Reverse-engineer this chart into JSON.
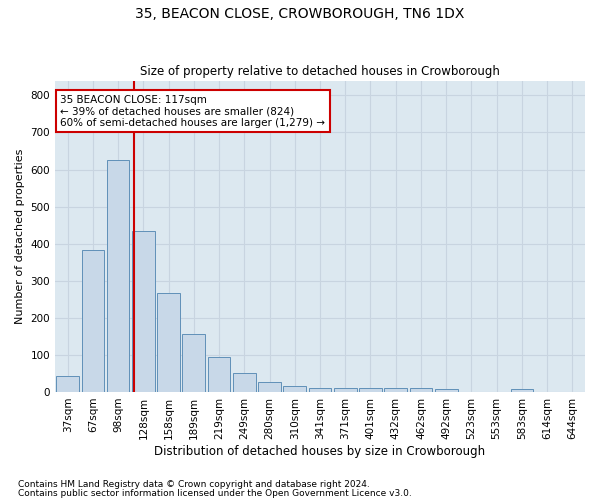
{
  "title1": "35, BEACON CLOSE, CROWBOROUGH, TN6 1DX",
  "title2": "Size of property relative to detached houses in Crowborough",
  "xlabel": "Distribution of detached houses by size in Crowborough",
  "ylabel": "Number of detached properties",
  "categories": [
    "37sqm",
    "67sqm",
    "98sqm",
    "128sqm",
    "158sqm",
    "189sqm",
    "219sqm",
    "249sqm",
    "280sqm",
    "310sqm",
    "341sqm",
    "371sqm",
    "401sqm",
    "432sqm",
    "462sqm",
    "492sqm",
    "523sqm",
    "553sqm",
    "583sqm",
    "614sqm",
    "644sqm"
  ],
  "values": [
    43,
    383,
    625,
    435,
    268,
    155,
    95,
    52,
    27,
    15,
    10,
    10,
    10,
    10,
    10,
    8,
    0,
    0,
    8,
    0,
    0
  ],
  "bar_color": "#c8d8e8",
  "bar_edge_color": "#6090b8",
  "vline_color": "#cc0000",
  "annotation_text": "35 BEACON CLOSE: 117sqm\n← 39% of detached houses are smaller (824)\n60% of semi-detached houses are larger (1,279) →",
  "annotation_box_color": "white",
  "annotation_box_edge": "#cc0000",
  "ylim": [
    0,
    840
  ],
  "yticks": [
    0,
    100,
    200,
    300,
    400,
    500,
    600,
    700,
    800
  ],
  "footnote1": "Contains HM Land Registry data © Crown copyright and database right 2024.",
  "footnote2": "Contains public sector information licensed under the Open Government Licence v3.0.",
  "grid_color": "#c8d4e0",
  "bg_color": "#dce8f0",
  "title1_fontsize": 10,
  "title2_fontsize": 8.5,
  "xlabel_fontsize": 8.5,
  "ylabel_fontsize": 8,
  "tick_fontsize": 7.5,
  "annot_fontsize": 7.5,
  "footnote_fontsize": 6.5
}
